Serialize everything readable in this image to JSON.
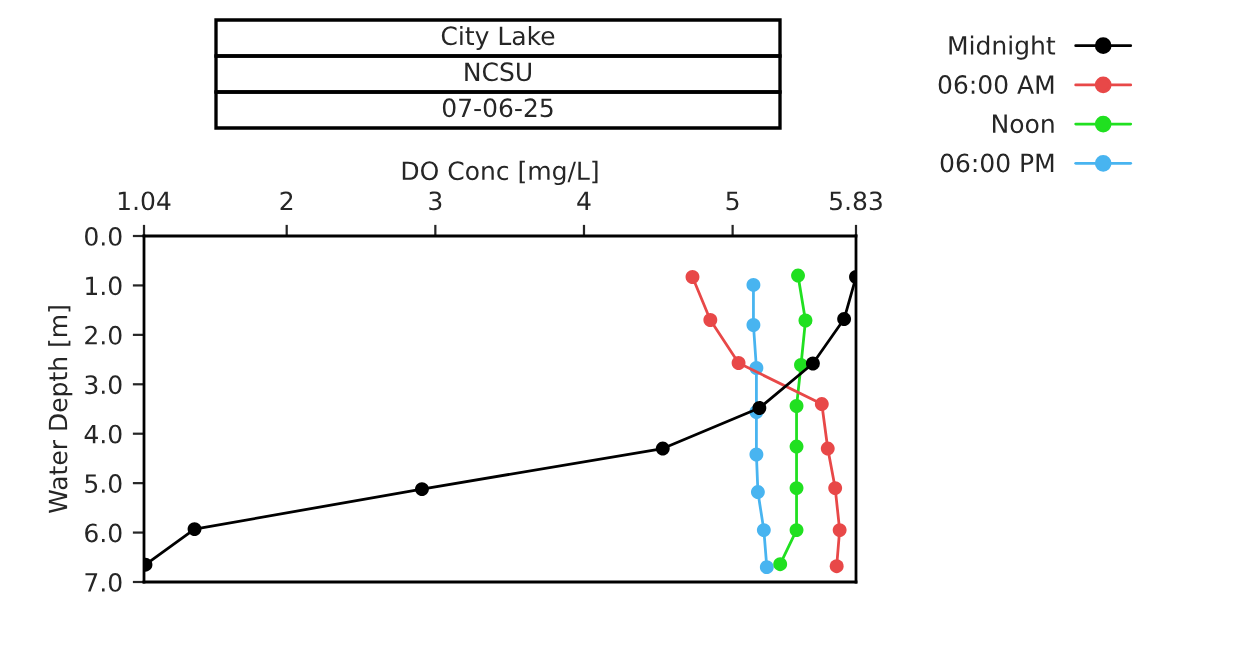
{
  "chart_data": {
    "type": "line",
    "title": "City Lake",
    "subtitle": "NCSU",
    "annotations": [
      "07-06-25"
    ],
    "xlabel": "DO Conc [mg/L]",
    "ylabel": "Water Depth [m]",
    "xlim": [
      1.04,
      5.83
    ],
    "xticks": [
      1.04,
      2,
      3,
      4,
      5,
      5.83
    ],
    "ylim": [
      7,
      0
    ],
    "yticks": [
      {
        "value": 0,
        "label": "0.0"
      },
      {
        "value": 1,
        "label": "1.0"
      },
      {
        "value": 2,
        "label": "2.0"
      },
      {
        "value": 3,
        "label": "3.0"
      },
      {
        "value": 4,
        "label": "4.0"
      },
      {
        "value": 5,
        "label": "5.0"
      },
      {
        "value": 6,
        "label": "6.0"
      },
      {
        "value": 7,
        "label": "7.0"
      }
    ],
    "grid": false,
    "legend": "top right",
    "marker": "circle",
    "line_style": "solid",
    "series": [
      {
        "name": "Midnight",
        "color": "#000000",
        "x": [
          5.83,
          5.75,
          5.54,
          5.18,
          4.53,
          2.91,
          1.38,
          1.05
        ],
        "values": [
          0.83,
          1.68,
          2.58,
          3.48,
          4.3,
          5.12,
          5.93,
          6.65
        ]
      },
      {
        "name": "06:00 AM",
        "color": "#e84848",
        "x": [
          4.73,
          4.85,
          5.04,
          5.6,
          5.64,
          5.69,
          5.72,
          5.7
        ],
        "values": [
          0.83,
          1.7,
          2.57,
          3.4,
          4.3,
          5.1,
          5.95,
          6.68
        ]
      },
      {
        "name": "Noon",
        "color": "#20e020",
        "x": [
          5.44,
          5.49,
          5.46,
          5.43,
          5.43,
          5.43,
          5.43,
          5.32
        ],
        "values": [
          0.8,
          1.71,
          2.61,
          3.44,
          4.26,
          5.1,
          5.95,
          6.64
        ]
      },
      {
        "name": "06:00 PM",
        "color": "#48b4f0",
        "x": [
          5.14,
          5.14,
          5.16,
          5.16,
          5.16,
          5.17,
          5.21,
          5.23
        ],
        "values": [
          0.99,
          1.8,
          2.67,
          3.56,
          4.42,
          5.18,
          5.95,
          6.7
        ]
      }
    ]
  }
}
